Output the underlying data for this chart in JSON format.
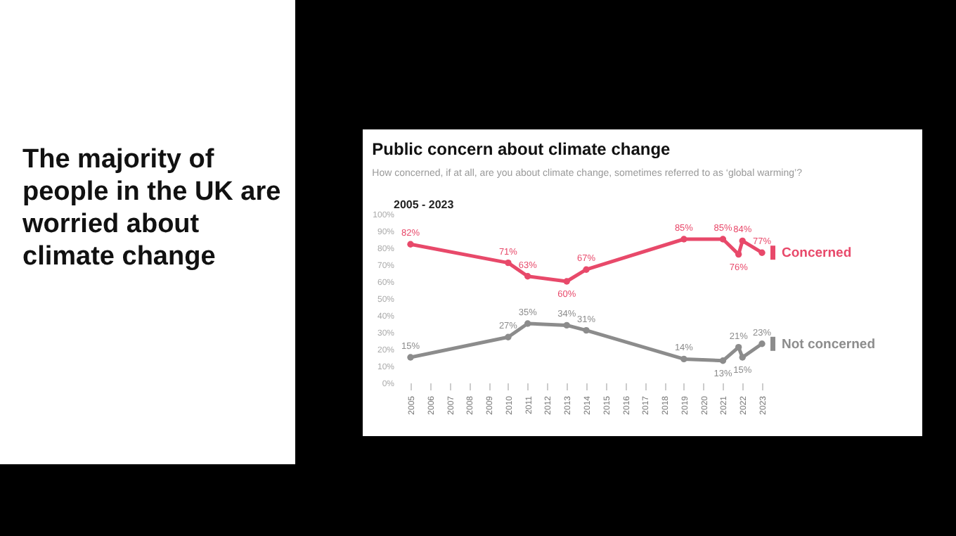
{
  "chart_data": {
    "type": "line",
    "title": "Public concern about climate change",
    "subtitle": "How concerned, if at all, are you about climate change, sometimes referred to as ‘global warming’?",
    "annotations": [
      "The majority of people in the UK are worried about climate change",
      "2005 - 2023"
    ],
    "x": [
      2005,
      2010,
      2011,
      2013,
      2014,
      2019,
      2021,
      2021.8,
      2022,
      2023
    ],
    "series": [
      {
        "name": "Concerned",
        "color": "#e8496a",
        "values": [
          82,
          71,
          63,
          60,
          67,
          85,
          85,
          76,
          84,
          77
        ],
        "value_labels": [
          "82%",
          "71%",
          "63%",
          "60%",
          "67%",
          "85%",
          "85%",
          "76%",
          "84%",
          "77%"
        ]
      },
      {
        "name": "Not concerned",
        "color": "#8c8c8c",
        "values": [
          15,
          27,
          35,
          34,
          31,
          14,
          13,
          21,
          15,
          23
        ],
        "value_labels": [
          "15%",
          "27%",
          "35%",
          "34%",
          "31%",
          "14%",
          "13%",
          "21%",
          "15%",
          "23%"
        ]
      }
    ],
    "xlim": [
      2005,
      2023
    ],
    "xticks": [
      2005,
      2006,
      2007,
      2008,
      2009,
      2010,
      2011,
      2012,
      2013,
      2014,
      2015,
      2016,
      2017,
      2018,
      2019,
      2020,
      2021,
      2022,
      2023
    ],
    "ylim": [
      0,
      100
    ],
    "yticks": [
      {
        "value": 0,
        "label": "0%"
      },
      {
        "value": 10,
        "label": "10%"
      },
      {
        "value": 20,
        "label": "20%"
      },
      {
        "value": 30,
        "label": "30%"
      },
      {
        "value": 40,
        "label": "40%"
      },
      {
        "value": 50,
        "label": "50%"
      },
      {
        "value": 60,
        "label": "60%"
      },
      {
        "value": 70,
        "label": "70%"
      },
      {
        "value": 80,
        "label": "80%"
      },
      {
        "value": 90,
        "label": "90%"
      },
      {
        "value": 100,
        "label": "100%"
      }
    ],
    "marker": "circle",
    "grid": false,
    "legend": "right"
  }
}
